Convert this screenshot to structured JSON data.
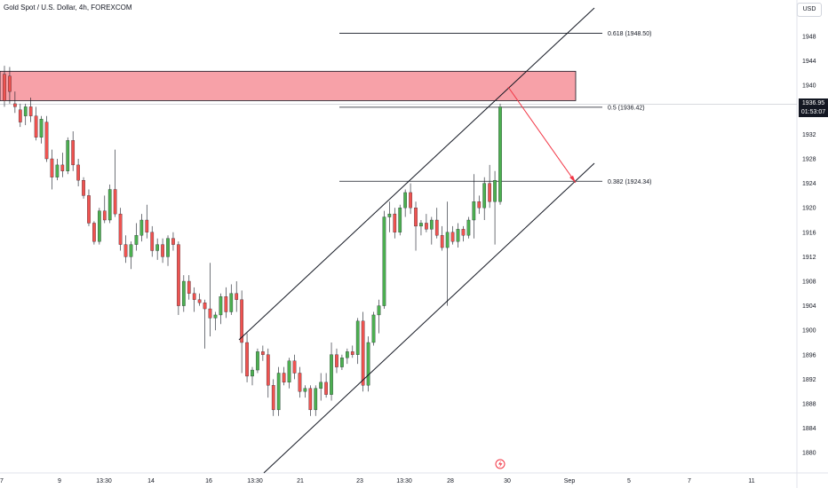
{
  "header": {
    "title": "Gold Spot / U.S. Dollar, 4h, FOREXCOM",
    "currency_button": "USD"
  },
  "price_badge": {
    "price": "1936.95",
    "countdown": "01:53:07"
  },
  "colors": {
    "up": "#26a69a",
    "up_fill": "#4caf50",
    "down": "#ef5350",
    "zone": "#f7a1a8",
    "arrow": "#f23645",
    "line": "#131722"
  },
  "chart_data": {
    "type": "candlestick",
    "symbol": "Gold Spot / U.S. Dollar",
    "interval": "4h",
    "exchange": "FOREXCOM",
    "ylim": [
      1877,
      1953
    ],
    "y_ticks": [
      1880,
      1884,
      1888,
      1892,
      1896,
      1900,
      1904,
      1908,
      1912,
      1916,
      1920,
      1924,
      1928,
      1932,
      1936,
      1940,
      1944,
      1948
    ],
    "x_ticks": [
      "7",
      "9",
      "13:30",
      "14",
      "16",
      "13:30",
      "21",
      "23",
      "13:30",
      "28",
      "30",
      "Sep",
      "5",
      "7",
      "11"
    ],
    "current_price": 1936.95,
    "fib_levels": [
      {
        "label": "0.618 (1948.50)",
        "value": 1948.5
      },
      {
        "label": "0.5 (1936.42)",
        "value": 1936.42
      },
      {
        "label": "0.382 (1924.34)",
        "value": 1924.34
      }
    ],
    "resistance_zone": {
      "low": 1937.5,
      "high": 1942.3
    },
    "channel": {
      "upper": [
        [
          1898.9,
          1953.0
        ]
      ],
      "lower": [
        [
          1876.0,
          1926.0
        ]
      ]
    },
    "projection_arrow": {
      "from": 1939.0,
      "to": 1924.3
    },
    "candles": [
      [
        1941.8,
        1943.2,
        1936.5,
        1937.5
      ],
      [
        1941.5,
        1943.0,
        1937.0,
        1939.0
      ],
      [
        1937.0,
        1939.0,
        1935.5,
        1936.5
      ],
      [
        1936.0,
        1937.0,
        1933.2,
        1934.0
      ],
      [
        1935.0,
        1937.0,
        1933.5,
        1936.5
      ],
      [
        1936.5,
        1938.0,
        1934.0,
        1935.0
      ],
      [
        1935.0,
        1936.5,
        1931.0,
        1931.5
      ],
      [
        1931.5,
        1935.0,
        1930.5,
        1934.5
      ],
      [
        1934.0,
        1935.0,
        1927.5,
        1928.0
      ],
      [
        1928.0,
        1929.5,
        1923.0,
        1925.0
      ],
      [
        1925.0,
        1928.0,
        1924.5,
        1927.0
      ],
      [
        1927.0,
        1929.0,
        1925.0,
        1926.0
      ],
      [
        1926.0,
        1931.5,
        1925.5,
        1931.0
      ],
      [
        1931.0,
        1932.5,
        1926.0,
        1927.0
      ],
      [
        1927.0,
        1928.0,
        1923.5,
        1924.5
      ],
      [
        1924.5,
        1925.0,
        1921.5,
        1922.0
      ],
      [
        1922.0,
        1923.0,
        1917.0,
        1917.5
      ],
      [
        1917.5,
        1917.8,
        1914.0,
        1914.5
      ],
      [
        1914.5,
        1920.0,
        1914.0,
        1919.5
      ],
      [
        1919.5,
        1922.0,
        1917.5,
        1918.0
      ],
      [
        1918.0,
        1923.8,
        1917.5,
        1923.0
      ],
      [
        1923.0,
        1929.5,
        1918.5,
        1919.0
      ],
      [
        1919.0,
        1920.0,
        1913.0,
        1914.0
      ],
      [
        1914.0,
        1915.5,
        1911.0,
        1912.0
      ],
      [
        1912.0,
        1914.5,
        1910.0,
        1914.0
      ],
      [
        1914.0,
        1917.5,
        1913.0,
        1915.5
      ],
      [
        1915.5,
        1919.0,
        1914.5,
        1918.0
      ],
      [
        1918.0,
        1920.5,
        1915.0,
        1916.0
      ],
      [
        1916.0,
        1917.0,
        1912.0,
        1913.0
      ],
      [
        1913.0,
        1915.0,
        1911.5,
        1914.0
      ],
      [
        1914.0,
        1915.0,
        1911.0,
        1912.0
      ],
      [
        1912.0,
        1915.5,
        1910.5,
        1915.0
      ],
      [
        1915.0,
        1916.0,
        1913.0,
        1914.0
      ],
      [
        1914.0,
        1914.5,
        1902.5,
        1904.0
      ],
      [
        1904.0,
        1909.0,
        1903.0,
        1908.0
      ],
      [
        1908.0,
        1909.0,
        1905.0,
        1906.0
      ],
      [
        1906.0,
        1907.0,
        1903.0,
        1905.0
      ],
      [
        1905.0,
        1906.0,
        1904.0,
        1904.5
      ],
      [
        1904.5,
        1905.0,
        1897.0,
        1903.5
      ],
      [
        1903.5,
        1911.0,
        1899.0,
        1902.0
      ],
      [
        1902.0,
        1903.0,
        1900.0,
        1902.5
      ],
      [
        1902.5,
        1906.0,
        1901.0,
        1905.5
      ],
      [
        1905.5,
        1907.0,
        1902.0,
        1903.0
      ],
      [
        1903.0,
        1907.5,
        1902.5,
        1906.0
      ],
      [
        1906.0,
        1908.0,
        1903.0,
        1905.0
      ],
      [
        1905.0,
        1906.5,
        1893.0,
        1898.0
      ],
      [
        1898.0,
        1899.5,
        1891.5,
        1892.5
      ],
      [
        1892.5,
        1894.0,
        1891.0,
        1893.5
      ],
      [
        1893.5,
        1897.0,
        1893.0,
        1896.5
      ],
      [
        1896.5,
        1897.5,
        1895.0,
        1896.0
      ],
      [
        1896.0,
        1897.0,
        1889.0,
        1891.0
      ],
      [
        1891.0,
        1892.0,
        1886.0,
        1887.0
      ],
      [
        1887.0,
        1894.0,
        1886.0,
        1893.0
      ],
      [
        1893.0,
        1894.0,
        1891.0,
        1891.5
      ],
      [
        1891.5,
        1895.5,
        1890.5,
        1895.0
      ],
      [
        1895.0,
        1896.0,
        1892.0,
        1893.0
      ],
      [
        1893.0,
        1894.0,
        1889.0,
        1890.0
      ],
      [
        1890.0,
        1891.0,
        1889.0,
        1890.5
      ],
      [
        1890.5,
        1891.0,
        1886.0,
        1887.0
      ],
      [
        1887.0,
        1891.0,
        1886.0,
        1890.5
      ],
      [
        1890.5,
        1893.0,
        1888.5,
        1891.5
      ],
      [
        1891.5,
        1893.0,
        1889.0,
        1889.5
      ],
      [
        1889.5,
        1898.0,
        1888.5,
        1896.0
      ],
      [
        1896.0,
        1897.0,
        1893.0,
        1894.0
      ],
      [
        1894.0,
        1896.0,
        1893.5,
        1895.5
      ],
      [
        1895.5,
        1897.0,
        1894.5,
        1896.5
      ],
      [
        1896.5,
        1897.5,
        1895.5,
        1896.0
      ],
      [
        1896.0,
        1902.0,
        1894.5,
        1901.5
      ],
      [
        1901.5,
        1903.0,
        1890.0,
        1891.0
      ],
      [
        1891.0,
        1899.0,
        1890.0,
        1898.0
      ],
      [
        1898.0,
        1903.0,
        1897.5,
        1902.5
      ],
      [
        1902.5,
        1905.0,
        1899.5,
        1904.0
      ],
      [
        1904.0,
        1919.5,
        1903.5,
        1918.5
      ],
      [
        1918.5,
        1921.0,
        1916.0,
        1919.0
      ],
      [
        1919.0,
        1920.0,
        1915.0,
        1916.0
      ],
      [
        1916.0,
        1920.5,
        1915.5,
        1920.0
      ],
      [
        1920.0,
        1923.0,
        1918.5,
        1922.5
      ],
      [
        1922.5,
        1924.0,
        1919.0,
        1920.0
      ],
      [
        1920.0,
        1921.0,
        1913.0,
        1917.0
      ],
      [
        1917.0,
        1918.0,
        1915.5,
        1917.5
      ],
      [
        1917.5,
        1919.0,
        1916.0,
        1916.5
      ],
      [
        1916.5,
        1918.5,
        1914.0,
        1918.0
      ],
      [
        1918.0,
        1920.0,
        1915.0,
        1915.5
      ],
      [
        1915.5,
        1917.0,
        1913.0,
        1913.5
      ],
      [
        1913.5,
        1921.0,
        1904.0,
        1916.0
      ],
      [
        1916.0,
        1917.0,
        1914.0,
        1914.5
      ],
      [
        1914.5,
        1917.5,
        1913.5,
        1916.5
      ],
      [
        1916.5,
        1917.0,
        1914.5,
        1915.5
      ],
      [
        1915.5,
        1918.5,
        1915.0,
        1918.0
      ],
      [
        1918.0,
        1925.5,
        1915.0,
        1921.0
      ],
      [
        1921.0,
        1922.0,
        1919.0,
        1920.0
      ],
      [
        1920.0,
        1925.0,
        1918.0,
        1924.0
      ],
      [
        1924.0,
        1927.0,
        1920.0,
        1921.0
      ],
      [
        1921.0,
        1926.0,
        1914.0,
        1924.5
      ],
      [
        1921.0,
        1937.0,
        1920.5,
        1936.5
      ]
    ]
  }
}
